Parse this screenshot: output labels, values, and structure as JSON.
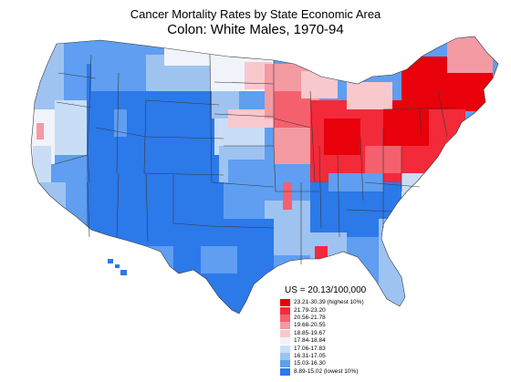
{
  "header": {
    "title": "Cancer Mortality Rates by State Economic Area",
    "subtitle": "Colon:  White Males, 1970-94"
  },
  "legend": {
    "us_rate": "US = 20.13/100,000",
    "classes": [
      {
        "label": "23.21-30.39 (highest 10%)",
        "color": "#e8000b"
      },
      {
        "label": "21.79-23.20",
        "color": "#f32a3a"
      },
      {
        "label": "20.56-21.78",
        "color": "#f5606e"
      },
      {
        "label": "19.68-20.55",
        "color": "#f39aa3"
      },
      {
        "label": "18.85-19.67",
        "color": "#f8c8cd"
      },
      {
        "label": "17.84-18.84",
        "color": "#f1f3fa"
      },
      {
        "label": "17.06-17.83",
        "color": "#c9def6"
      },
      {
        "label": "16.31-17.05",
        "color": "#9ec3f1"
      },
      {
        "label": "15.03-16.30",
        "color": "#5f9ef0"
      },
      {
        "label": "8.89-15.02 (lowest 10%)",
        "color": "#2c79ea"
      }
    ]
  },
  "map": {
    "region": "United States (state economic areas)",
    "shows_hawaii_alaska": false
  }
}
